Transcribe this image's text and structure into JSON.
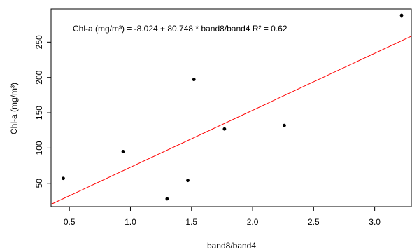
{
  "chart_data": {
    "type": "scatter",
    "title": "",
    "xlabel": "band8/band4",
    "ylabel": "Chl-a (mg/m³)",
    "xlim": [
      0.35,
      3.3
    ],
    "ylim": [
      17,
      297
    ],
    "x_ticks": [
      0.5,
      1.0,
      1.5,
      2.0,
      2.5,
      3.0
    ],
    "x_tick_labels": [
      "0.5",
      "1.0",
      "1.5",
      "2.0",
      "2.5",
      "3.0"
    ],
    "y_ticks": [
      50,
      100,
      150,
      200,
      250
    ],
    "y_tick_labels": [
      "50",
      "100",
      "150",
      "200",
      "250"
    ],
    "grid": false,
    "annotation": "Chl-a (mg/m³) = -8.024 + 80.748 * band8/band4  R² = 0.62",
    "points": [
      {
        "x": 0.45,
        "y": 57
      },
      {
        "x": 0.94,
        "y": 95
      },
      {
        "x": 1.3,
        "y": 28
      },
      {
        "x": 1.47,
        "y": 54
      },
      {
        "x": 1.52,
        "y": 197
      },
      {
        "x": 1.77,
        "y": 127
      },
      {
        "x": 2.26,
        "y": 132
      },
      {
        "x": 3.22,
        "y": 288
      }
    ],
    "regression": {
      "intercept": -8.024,
      "slope": 80.748
    },
    "colors": {
      "points": "#000000",
      "line": "#ff0000",
      "axes": "#000000"
    }
  }
}
